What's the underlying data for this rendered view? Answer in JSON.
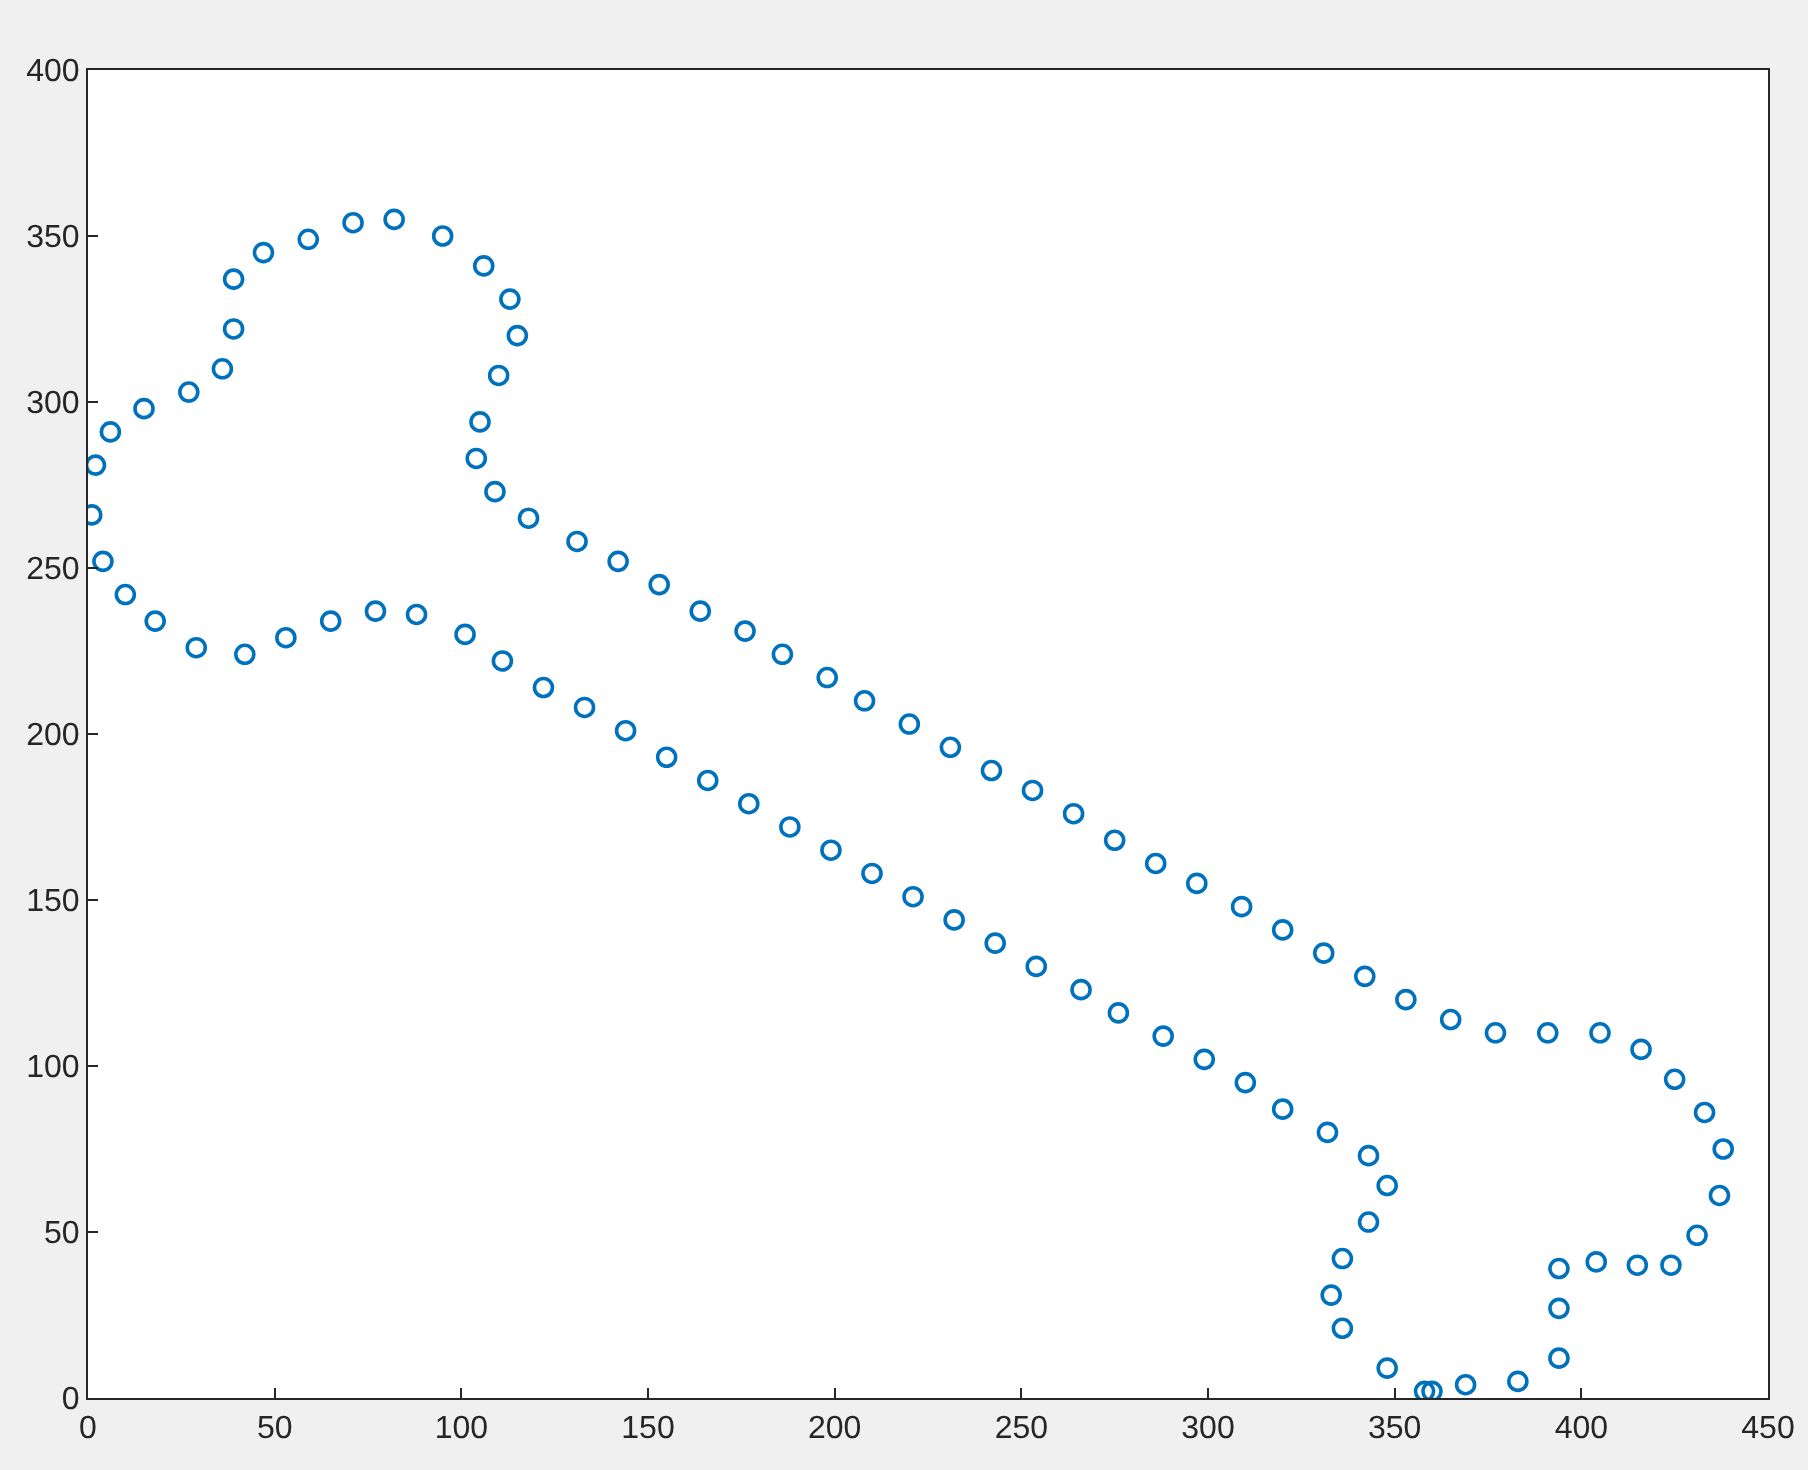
{
  "chart_data": {
    "type": "scatter",
    "marker": "circle",
    "grid": false,
    "xlim": [
      0,
      450
    ],
    "xticks": [
      0,
      50,
      100,
      150,
      200,
      250,
      300,
      350,
      400,
      450
    ],
    "ylim": [
      0,
      400
    ],
    "yticks": [
      0,
      50,
      100,
      150,
      200,
      250,
      300,
      350,
      400
    ],
    "series": [
      {
        "color": "#0072bd",
        "x": [
          1,
          2,
          6,
          15,
          27,
          36,
          39,
          39,
          47,
          59,
          71,
          82,
          95,
          106,
          113,
          115,
          110,
          105,
          104,
          109,
          118,
          131,
          142,
          153,
          164,
          176,
          186,
          198,
          208,
          220,
          231,
          242,
          253,
          264,
          275,
          286,
          297,
          309,
          320,
          331,
          342,
          353,
          365,
          377,
          391,
          405,
          416,
          425,
          433,
          438,
          437,
          431,
          424,
          415,
          404,
          394,
          394,
          394,
          383,
          369,
          360,
          358,
          348,
          336,
          333,
          336,
          343,
          348,
          343,
          332,
          320,
          310,
          299,
          288,
          276,
          266,
          254,
          243,
          232,
          221,
          210,
          199,
          188,
          177,
          166,
          155,
          144,
          133,
          122,
          111,
          101,
          88,
          77,
          65,
          53,
          42,
          29,
          18,
          10,
          4
        ],
        "values": [
          266,
          281,
          291,
          298,
          303,
          310,
          322,
          337,
          345,
          349,
          354,
          355,
          350,
          341,
          331,
          320,
          308,
          294,
          283,
          273,
          265,
          258,
          252,
          245,
          237,
          231,
          224,
          217,
          210,
          203,
          196,
          189,
          183,
          176,
          168,
          161,
          155,
          148,
          141,
          134,
          127,
          120,
          114,
          110,
          110,
          110,
          105,
          96,
          86,
          75,
          61,
          49,
          40,
          40,
          41,
          39,
          27,
          12,
          5,
          4,
          2,
          2,
          9,
          21,
          31,
          42,
          53,
          64,
          73,
          80,
          87,
          95,
          102,
          109,
          116,
          123,
          130,
          137,
          144,
          151,
          158,
          165,
          172,
          179,
          186,
          193,
          201,
          208,
          214,
          222,
          230,
          236,
          237,
          234,
          229,
          224,
          226,
          234,
          242,
          252
        ]
      }
    ]
  }
}
